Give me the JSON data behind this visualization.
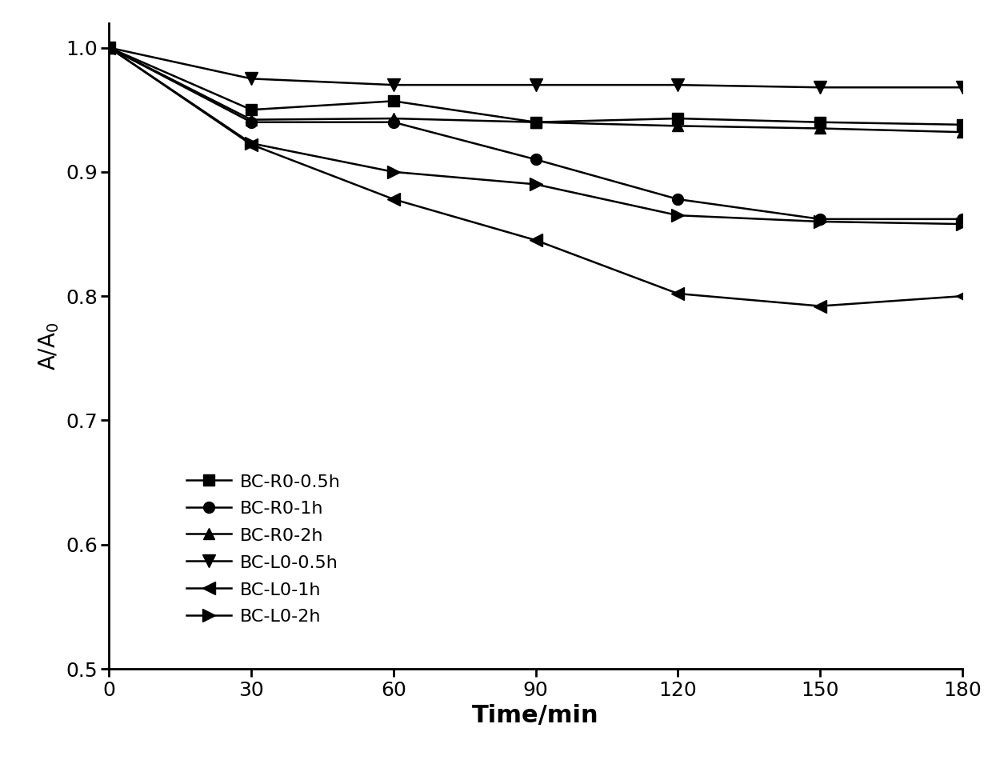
{
  "x": [
    0,
    30,
    60,
    90,
    120,
    150,
    180
  ],
  "series": [
    {
      "label": "BC-R0-0.5h",
      "y": [
        1.0,
        0.95,
        0.957,
        0.94,
        0.943,
        0.94,
        0.938
      ],
      "marker": "s",
      "markersize": 10,
      "color": "#000000",
      "linewidth": 1.8
    },
    {
      "label": "BC-R0-1h",
      "y": [
        1.0,
        0.94,
        0.94,
        0.91,
        0.878,
        0.862,
        0.862
      ],
      "marker": "o",
      "markersize": 10,
      "color": "#000000",
      "linewidth": 1.8
    },
    {
      "label": "BC-R0-2h",
      "y": [
        1.0,
        0.942,
        0.943,
        0.94,
        0.937,
        0.935,
        0.932
      ],
      "marker": "^",
      "markersize": 10,
      "color": "#000000",
      "linewidth": 1.8
    },
    {
      "label": "BC-L0-0.5h",
      "y": [
        1.0,
        0.975,
        0.97,
        0.97,
        0.97,
        0.968,
        0.968
      ],
      "marker": "v",
      "markersize": 12,
      "color": "#000000",
      "linewidth": 1.8
    },
    {
      "label": "BC-L0-1h",
      "y": [
        1.0,
        0.922,
        0.878,
        0.845,
        0.802,
        0.792,
        0.8
      ],
      "marker": "<",
      "markersize": 11,
      "color": "#000000",
      "linewidth": 1.8
    },
    {
      "label": "BC-L0-2h",
      "y": [
        1.0,
        0.923,
        0.9,
        0.89,
        0.865,
        0.86,
        0.858
      ],
      "marker": ">",
      "markersize": 11,
      "color": "#000000",
      "linewidth": 1.8
    }
  ],
  "xlabel": "Time/min",
  "ylabel": "A/A$_0$",
  "xlim": [
    0,
    180
  ],
  "ylim": [
    0.5,
    1.02
  ],
  "xticks": [
    0,
    30,
    60,
    90,
    120,
    150,
    180
  ],
  "yticks": [
    0.5,
    0.6,
    0.7,
    0.8,
    0.9,
    1.0
  ],
  "xlabel_fontsize": 22,
  "ylabel_fontsize": 20,
  "tick_fontsize": 18,
  "legend_fontsize": 16,
  "background_color": "#ffffff"
}
